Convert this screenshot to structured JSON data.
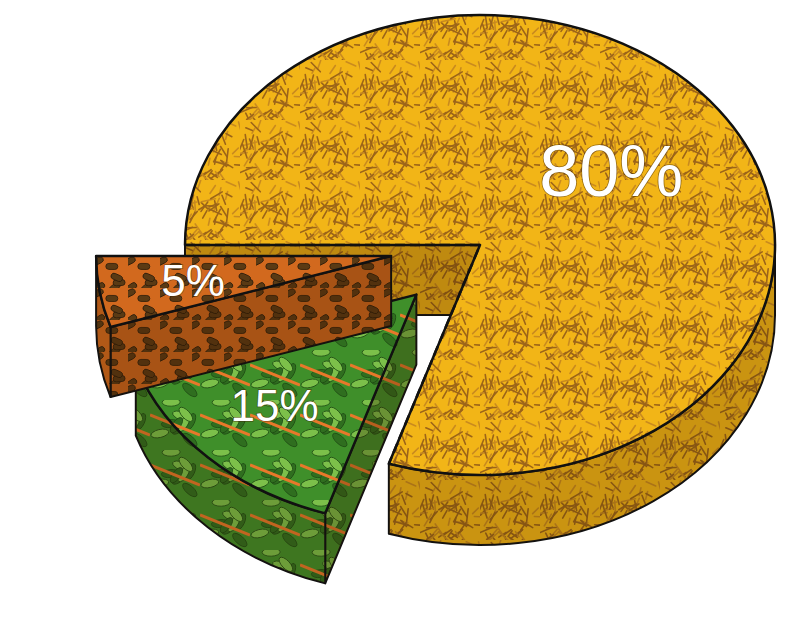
{
  "chart_data": {
    "type": "pie",
    "values": [
      80,
      15,
      5
    ],
    "value_labels": [
      "80%",
      "15%",
      "5%"
    ],
    "colors": [
      "#f2b517",
      "#3f8f2a",
      "#d2691e"
    ],
    "data_labels": true
  }
}
